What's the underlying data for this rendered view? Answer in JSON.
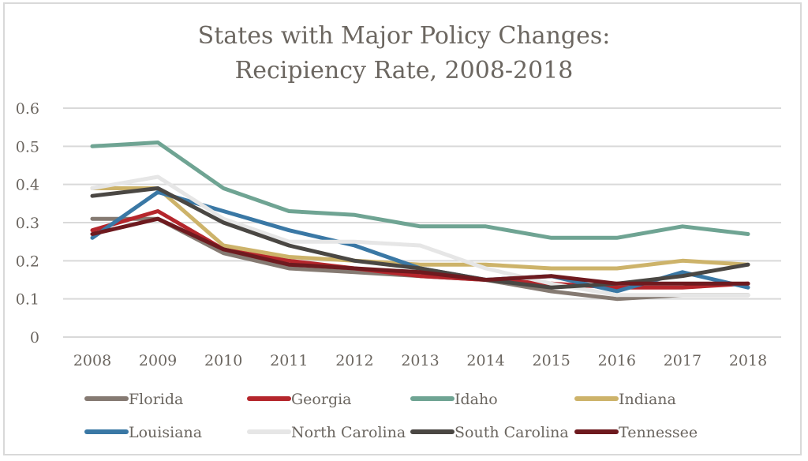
{
  "chart_data": {
    "type": "line",
    "title": [
      "States with Major Policy Changes:",
      "Recipiency Rate, 2008-2018"
    ],
    "xlabel": "",
    "ylabel": "",
    "x": [
      "2008",
      "2009",
      "2010",
      "2011",
      "2012",
      "2013",
      "2014",
      "2015",
      "2016",
      "2017",
      "2018"
    ],
    "ylim": [
      0,
      0.6
    ],
    "yticks": [
      "0",
      "0.1",
      "0.2",
      "0.3",
      "0.4",
      "0.5",
      "0.6"
    ],
    "grid": true,
    "legend_position": "bottom",
    "series": [
      {
        "name": "Florida",
        "color": "#857a72",
        "values": [
          0.31,
          0.31,
          0.22,
          0.18,
          0.17,
          0.16,
          0.15,
          0.12,
          0.1,
          0.11,
          0.11
        ]
      },
      {
        "name": "Georgia",
        "color": "#b5262c",
        "values": [
          0.28,
          0.33,
          0.23,
          0.2,
          0.18,
          0.16,
          0.15,
          0.14,
          0.13,
          0.13,
          0.14
        ]
      },
      {
        "name": "Idaho",
        "color": "#6fa493",
        "values": [
          0.5,
          0.51,
          0.39,
          0.33,
          0.32,
          0.29,
          0.29,
          0.26,
          0.26,
          0.29,
          0.27
        ]
      },
      {
        "name": "Indiana",
        "color": "#cdb36a",
        "values": [
          0.39,
          0.39,
          0.24,
          0.21,
          0.2,
          0.19,
          0.19,
          0.18,
          0.18,
          0.2,
          0.19
        ]
      },
      {
        "name": "Louisiana",
        "color": "#3a78a5",
        "values": [
          0.26,
          0.38,
          0.33,
          0.28,
          0.24,
          0.18,
          0.15,
          0.16,
          0.12,
          0.17,
          0.13
        ]
      },
      {
        "name": "North Carolina",
        "color": "#e6e6e6",
        "values": [
          0.39,
          0.42,
          0.31,
          0.25,
          0.25,
          0.24,
          0.18,
          0.14,
          0.11,
          0.11,
          0.11
        ]
      },
      {
        "name": "South Carolina",
        "color": "#4a4743",
        "values": [
          0.37,
          0.39,
          0.3,
          0.24,
          0.2,
          0.18,
          0.15,
          0.13,
          0.14,
          0.16,
          0.19
        ]
      },
      {
        "name": "Tennessee",
        "color": "#6e1a1f",
        "values": [
          0.27,
          0.31,
          0.23,
          0.19,
          0.18,
          0.17,
          0.15,
          0.16,
          0.14,
          0.14,
          0.14
        ]
      }
    ]
  }
}
